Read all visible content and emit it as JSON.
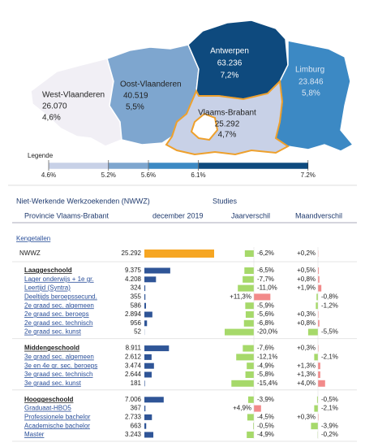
{
  "map": {
    "provinces": [
      {
        "name": "West-Vlaanderen",
        "value": "26.070",
        "pct": "4,6%",
        "color": "#f1eff5"
      },
      {
        "name": "Oost-Vlaanderen",
        "value": "40.519",
        "pct": "5,5%",
        "color": "#7ea6cf"
      },
      {
        "name": "Antwerpen",
        "value": "63.236",
        "pct": "7,2%",
        "color": "#0e4a7e"
      },
      {
        "name": "Vlaams-Brabant",
        "value": "25.292",
        "pct": "4,7%",
        "color": "#c8d1e7"
      },
      {
        "name": "Limburg",
        "value": "23.846",
        "pct": "5,8%",
        "color": "#3c89c4"
      }
    ],
    "legend": {
      "title": "Legende",
      "ticks": [
        {
          "value": 4.6,
          "label": "4.6%"
        },
        {
          "value": 5.2,
          "label": "5.2%"
        },
        {
          "value": 5.6,
          "label": "5.6%"
        },
        {
          "value": 6.1,
          "label": "6.1%"
        },
        {
          "value": 7.2,
          "label": "7.2%"
        }
      ],
      "colors": [
        "#c8d1e7",
        "#7ea6cf",
        "#3c89c4",
        "#0e4a7e"
      ]
    }
  },
  "table": {
    "title": "Niet-Werkende Werkzoekenden (NWWZ)",
    "section": "Studies",
    "subtitle": "Provincie Vlaams-Brabant",
    "period": "december 2019",
    "columns": [
      "Jaarverschil",
      "Maandverschil"
    ],
    "link": "Kengetallen",
    "total": {
      "label": "NWWZ",
      "value": 25292,
      "value_label": "25.292",
      "year": -6.2,
      "year_label": "-6,2%",
      "month": 0.2,
      "month_label": "+0,2%"
    },
    "groups": [
      {
        "header": {
          "label": "Laaggeschoold",
          "value": 9375,
          "value_label": "9.375",
          "year": -6.5,
          "year_label": "-6,5%",
          "month": 0.5,
          "month_label": "+0,5%"
        },
        "items": [
          {
            "label": "Lager onderwijs + 1e gr.",
            "value": 4208,
            "value_label": "4.208",
            "year": -7.7,
            "year_label": "-7,7%",
            "month": 0.8,
            "month_label": "+0,8%"
          },
          {
            "label": "Leertijd (Syntra)",
            "value": 324,
            "value_label": "324",
            "year": -11.0,
            "year_label": "-11,0%",
            "month": 1.9,
            "month_label": "+1,9%"
          },
          {
            "label": "Deeltijds beroepssecund.",
            "value": 355,
            "value_label": "355",
            "year": 11.3,
            "year_label": "+11,3%",
            "month": -0.8,
            "month_label": "-0,8%"
          },
          {
            "label": "2e graad sec. algemeen",
            "value": 586,
            "value_label": "586",
            "year": -5.9,
            "year_label": "-5,9%",
            "month": -1.2,
            "month_label": "-1,2%"
          },
          {
            "label": "2e graad sec. beroeps",
            "value": 2894,
            "value_label": "2.894",
            "year": -5.6,
            "year_label": "-5,6%",
            "month": 0.3,
            "month_label": "+0,3%"
          },
          {
            "label": "2e graad sec. technisch",
            "value": 956,
            "value_label": "956",
            "year": -6.8,
            "year_label": "-6,8%",
            "month": 0.8,
            "month_label": "+0,8%"
          },
          {
            "label": "2e graad sec. kunst",
            "value": 52,
            "value_label": "52",
            "year": -20.0,
            "year_label": "-20,0%",
            "month": -5.5,
            "month_label": "-5,5%"
          }
        ]
      },
      {
        "header": {
          "label": "Middengeschoold",
          "value": 8911,
          "value_label": "8.911",
          "year": -7.6,
          "year_label": "-7,6%",
          "month": 0.3,
          "month_label": "+0,3%"
        },
        "items": [
          {
            "label": "3e graad sec. algemeen",
            "value": 2612,
            "value_label": "2.612",
            "year": -12.1,
            "year_label": "-12,1%",
            "month": -2.1,
            "month_label": "-2,1%"
          },
          {
            "label": "3e en 4e gr. sec. beroeps",
            "value": 3474,
            "value_label": "3.474",
            "year": -4.9,
            "year_label": "-4,9%",
            "month": 1.3,
            "month_label": "+1,3%"
          },
          {
            "label": "3e graad sec. technisch",
            "value": 2644,
            "value_label": "2.644",
            "year": -5.8,
            "year_label": "-5,8%",
            "month": 1.3,
            "month_label": "+1,3%"
          },
          {
            "label": "3e graad sec. kunst",
            "value": 181,
            "value_label": "181",
            "year": -15.4,
            "year_label": "-15,4%",
            "month": 4.0,
            "month_label": "+4,0%"
          }
        ]
      },
      {
        "header": {
          "label": "Hooggeschoold",
          "value": 7006,
          "value_label": "7.006",
          "year": -3.9,
          "year_label": "-3,9%",
          "month": -0.5,
          "month_label": "-0,5%"
        },
        "items": [
          {
            "label": "Graduaat-HBO5",
            "value": 367,
            "value_label": "367",
            "year": 4.9,
            "year_label": "+4,9%",
            "month": -2.1,
            "month_label": "-2,1%"
          },
          {
            "label": "Professionele bachelor",
            "value": 2733,
            "value_label": "2.733",
            "year": -4.5,
            "year_label": "-4,5%",
            "month": 0.3,
            "month_label": "+0,3%"
          },
          {
            "label": "Academische bachelor",
            "value": 663,
            "value_label": "663",
            "year": -0.5,
            "year_label": "-0,5%",
            "month": -3.9,
            "month_label": "-3,9%"
          },
          {
            "label": "Master",
            "value": 3243,
            "value_label": "3.243",
            "year": -4.9,
            "year_label": "-4,9%",
            "month": -0.2,
            "month_label": "-0,2%"
          }
        ]
      }
    ]
  }
}
